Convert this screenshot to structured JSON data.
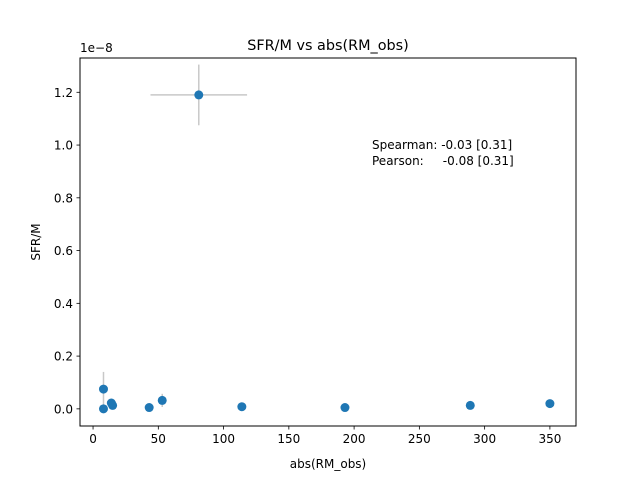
{
  "chart_data": {
    "type": "scatter",
    "title": "SFR/M vs abs(RM_obs)",
    "xlabel": "abs(RM_obs)",
    "ylabel": "SFR/M",
    "y_offset_label": "1e−8",
    "xlim": [
      -10,
      370
    ],
    "ylim": [
      -0.065,
      1.33
    ],
    "xticks": [
      0,
      50,
      100,
      150,
      200,
      250,
      300,
      350
    ],
    "yticks": [
      0.0,
      0.2,
      0.4,
      0.6,
      0.8,
      1.0,
      1.2
    ],
    "ytick_labels": [
      "0.0",
      "0.2",
      "0.4",
      "0.6",
      "0.8",
      "1.0",
      "1.2"
    ],
    "grid": false,
    "marker_color": "#1f77b4",
    "errorbar_color": "#c8c8c8",
    "points": [
      {
        "x": 81,
        "y": 1.19,
        "xerr": 37,
        "yerr": 0.115
      },
      {
        "x": 8,
        "y": 0.075,
        "xerr": 0,
        "yerr": 0.065
      },
      {
        "x": 8,
        "y": 0.0,
        "xerr": 0,
        "yerr": 0
      },
      {
        "x": 14,
        "y": 0.022,
        "xerr": 0,
        "yerr": 0
      },
      {
        "x": 15,
        "y": 0.013,
        "xerr": 0,
        "yerr": 0
      },
      {
        "x": 43,
        "y": 0.005,
        "xerr": 0,
        "yerr": 0
      },
      {
        "x": 53,
        "y": 0.032,
        "xerr": 0,
        "yerr": 0.025
      },
      {
        "x": 114,
        "y": 0.008,
        "xerr": 0,
        "yerr": 0
      },
      {
        "x": 193,
        "y": 0.005,
        "xerr": 0,
        "yerr": 0
      },
      {
        "x": 289,
        "y": 0.013,
        "xerr": 0,
        "yerr": 0
      },
      {
        "x": 350,
        "y": 0.02,
        "xerr": 0,
        "yerr": 0
      }
    ],
    "annotations": [
      {
        "text": "Spearman: -0.03 [0.31]"
      },
      {
        "text": "Pearson:     -0.08 [0.31]"
      }
    ]
  }
}
